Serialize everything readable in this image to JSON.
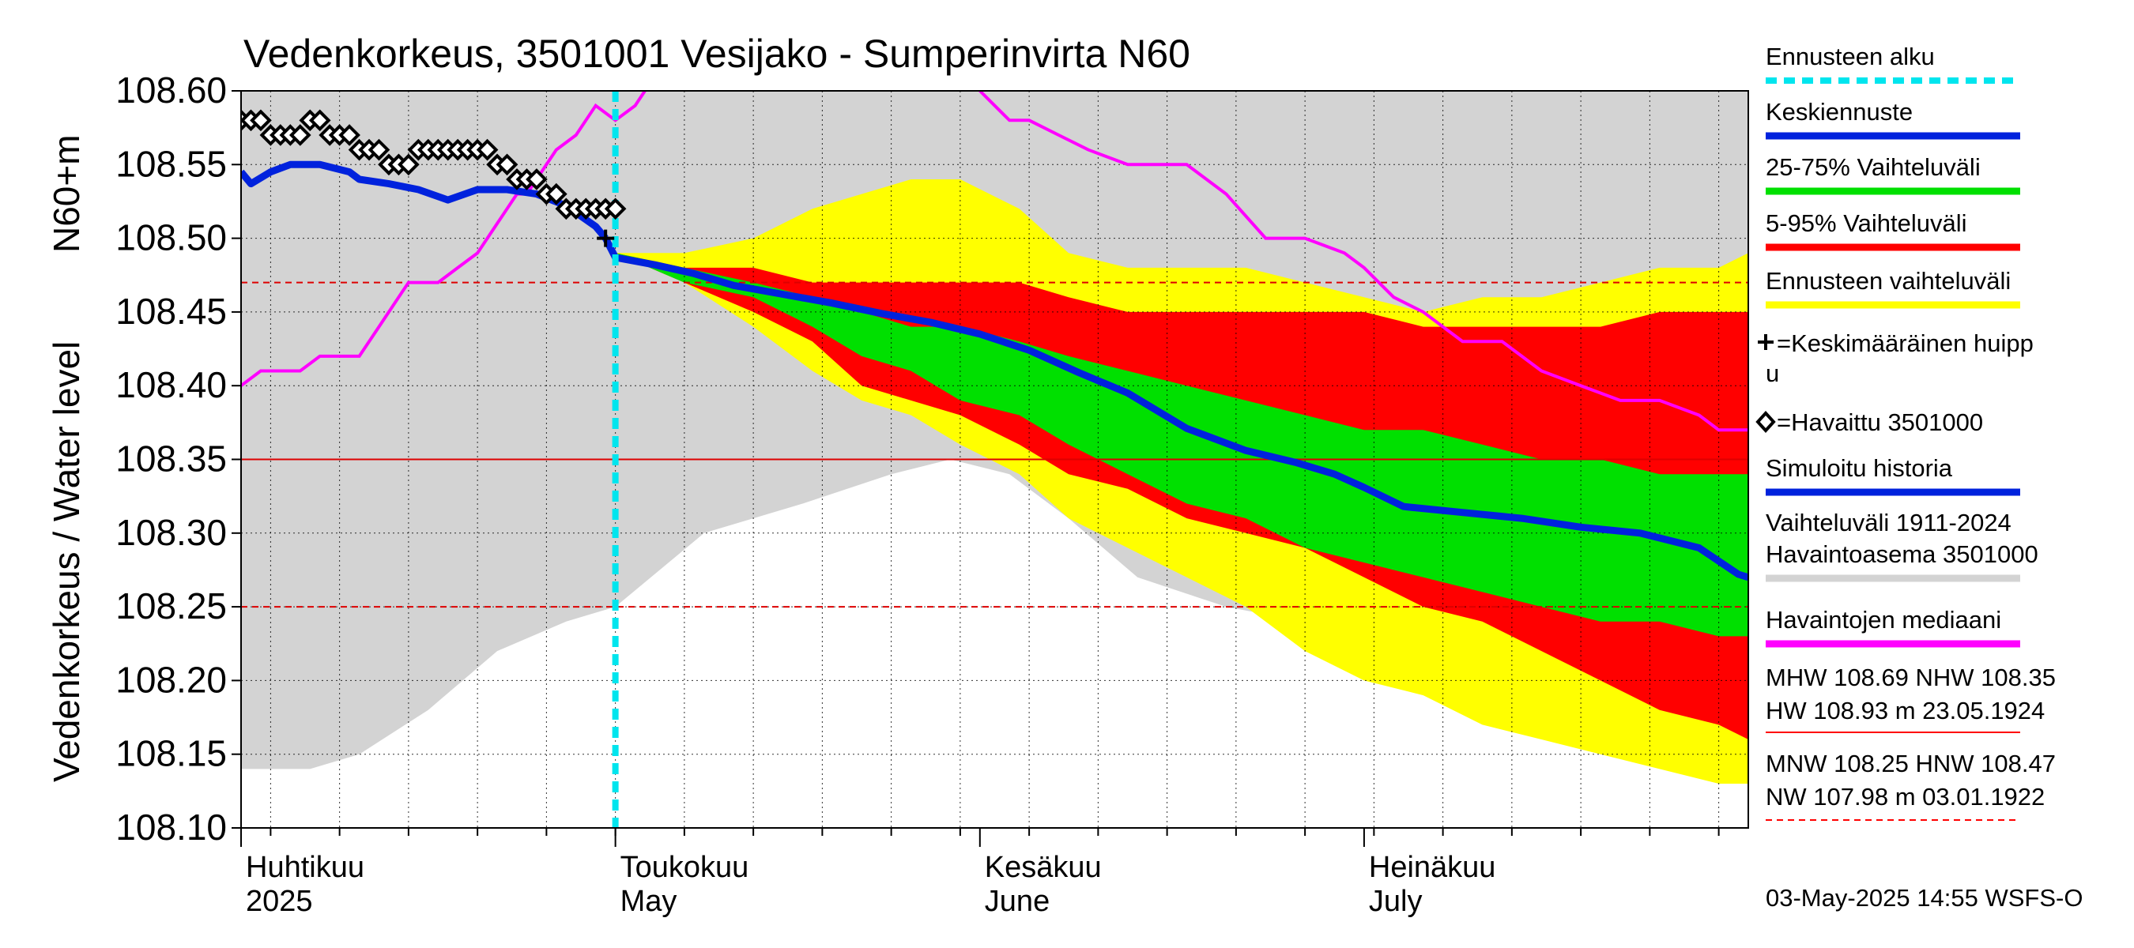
{
  "chart_data": {
    "type": "line",
    "title": "Vedenkorkeus, 3501001 Vesijako - Sumperinvirta N60",
    "ylabel_main": "Vedenkorkeus / Water level",
    "ylabel_unit": "N60+m",
    "ylim": [
      108.1,
      108.6
    ],
    "yticks": [
      "108.60",
      "108.55",
      "108.50",
      "108.45",
      "108.40",
      "108.35",
      "108.30",
      "108.25",
      "108.20",
      "108.15",
      "108.10"
    ],
    "xlim_days": [
      0,
      153
    ],
    "x_months": [
      {
        "label_fi": "Huhtikuu",
        "label_en": "2025",
        "day": 0
      },
      {
        "label_fi": "Toukokuu",
        "label_en": "May",
        "day": 38
      },
      {
        "label_fi": "Kesäkuu",
        "label_en": "June",
        "day": 75
      },
      {
        "label_fi": "Heinäkuu",
        "label_en": "July",
        "day": 114
      }
    ],
    "forecast_start_day": 38,
    "reference_lines": {
      "nhw": 108.35,
      "hnw": 108.47,
      "mnw": 108.25
    },
    "mean_peak": {
      "day": 37,
      "value": 108.5
    },
    "series": {
      "history_band": {
        "x": [
          0,
          7,
          12,
          19,
          26,
          33,
          38,
          47,
          57,
          66,
          72,
          78,
          84,
          91,
          100,
          108,
          114,
          122,
          130,
          137,
          144,
          150,
          153
        ],
        "upper": [
          108.6,
          108.6,
          108.6,
          108.6,
          108.6,
          108.6,
          108.6,
          108.6,
          108.6,
          108.6,
          108.6,
          108.6,
          108.6,
          108.6,
          108.6,
          108.6,
          108.6,
          108.6,
          108.6,
          108.6,
          108.6,
          108.6,
          108.6
        ],
        "lower": [
          108.14,
          108.14,
          108.15,
          108.18,
          108.22,
          108.24,
          108.25,
          108.3,
          108.32,
          108.34,
          108.35,
          108.34,
          108.31,
          108.27,
          108.25,
          108.24,
          108.23,
          108.22,
          108.2,
          108.19,
          108.17,
          108.15,
          108.15
        ]
      },
      "forecast_band": {
        "x": [
          38,
          45,
          52,
          58,
          63,
          68,
          73,
          79,
          84,
          90,
          96,
          102,
          108,
          114,
          120,
          126,
          132,
          138,
          144,
          150,
          153
        ],
        "upper": [
          108.49,
          108.49,
          108.5,
          108.52,
          108.53,
          108.54,
          108.54,
          108.52,
          108.49,
          108.48,
          108.48,
          108.48,
          108.47,
          108.46,
          108.45,
          108.46,
          108.46,
          108.47,
          108.48,
          108.48,
          108.49
        ],
        "lower": [
          108.49,
          108.47,
          108.44,
          108.41,
          108.39,
          108.38,
          108.36,
          108.34,
          108.31,
          108.29,
          108.27,
          108.25,
          108.22,
          108.2,
          108.19,
          108.17,
          108.16,
          108.15,
          108.14,
          108.13,
          108.13
        ]
      },
      "p5_95": {
        "x": [
          38,
          45,
          52,
          58,
          63,
          68,
          73,
          79,
          84,
          90,
          96,
          102,
          108,
          114,
          120,
          126,
          132,
          138,
          144,
          150,
          153
        ],
        "upper": [
          108.49,
          108.48,
          108.48,
          108.47,
          108.47,
          108.47,
          108.47,
          108.47,
          108.46,
          108.45,
          108.45,
          108.45,
          108.45,
          108.45,
          108.44,
          108.44,
          108.44,
          108.44,
          108.45,
          108.45,
          108.45
        ],
        "lower": [
          108.49,
          108.47,
          108.45,
          108.43,
          108.4,
          108.39,
          108.38,
          108.36,
          108.34,
          108.33,
          108.31,
          108.3,
          108.29,
          108.27,
          108.25,
          108.24,
          108.22,
          108.2,
          108.18,
          108.17,
          108.16
        ]
      },
      "p25_75": {
        "x": [
          38,
          45,
          52,
          58,
          63,
          68,
          73,
          79,
          84,
          90,
          96,
          102,
          108,
          114,
          120,
          126,
          132,
          138,
          144,
          150,
          153
        ],
        "upper": [
          108.49,
          108.48,
          108.47,
          108.46,
          108.45,
          108.44,
          108.44,
          108.43,
          108.42,
          108.41,
          108.4,
          108.39,
          108.38,
          108.37,
          108.37,
          108.36,
          108.35,
          108.35,
          108.34,
          108.34,
          108.34
        ],
        "lower": [
          108.49,
          108.47,
          108.46,
          108.44,
          108.42,
          108.41,
          108.39,
          108.38,
          108.36,
          108.34,
          108.32,
          108.31,
          108.29,
          108.28,
          108.27,
          108.26,
          108.25,
          108.24,
          108.24,
          108.23,
          108.23
        ]
      },
      "simulated": {
        "x": [
          0,
          1,
          3,
          5,
          8,
          11,
          12,
          15,
          18,
          21,
          24,
          27,
          30,
          33,
          36,
          37
        ],
        "y": [
          108.545,
          108.537,
          108.545,
          108.55,
          108.55,
          108.545,
          108.54,
          108.537,
          108.533,
          108.526,
          108.533,
          108.533,
          108.53,
          108.522,
          108.508,
          108.5
        ]
      },
      "mean_forecast": {
        "x": [
          37,
          38,
          42,
          46,
          50,
          55,
          60,
          65,
          70,
          75,
          80,
          85,
          90,
          96,
          102,
          107,
          111,
          114,
          118,
          124,
          130,
          136,
          142,
          148,
          152,
          153
        ],
        "y": [
          108.5,
          108.487,
          108.482,
          108.476,
          108.468,
          108.462,
          108.456,
          108.449,
          108.443,
          108.435,
          108.424,
          108.409,
          108.395,
          108.371,
          108.356,
          108.348,
          108.34,
          108.331,
          108.318,
          108.314,
          108.31,
          108.304,
          108.3,
          108.29,
          108.272,
          108.27
        ]
      },
      "median": {
        "x": [
          0,
          2,
          4,
          6,
          8,
          10,
          12,
          14,
          16,
          17,
          20,
          22,
          24,
          26,
          28,
          29,
          30,
          32,
          34,
          36,
          38,
          40,
          41
        ],
        "y": [
          108.4,
          108.41,
          108.41,
          108.41,
          108.42,
          108.42,
          108.42,
          108.44,
          108.46,
          108.47,
          108.47,
          108.48,
          108.49,
          108.51,
          108.53,
          108.53,
          108.54,
          108.56,
          108.57,
          108.59,
          108.58,
          108.59,
          108.6
        ],
        "x2": [
          75,
          78,
          80,
          83,
          86,
          90,
          93,
          96,
          100,
          104,
          108,
          112,
          114,
          117,
          120,
          124,
          128,
          132,
          136,
          140,
          144,
          148,
          150,
          153
        ],
        "y2": [
          108.6,
          108.58,
          108.58,
          108.57,
          108.56,
          108.55,
          108.55,
          108.55,
          108.53,
          108.5,
          108.5,
          108.49,
          108.48,
          108.46,
          108.45,
          108.43,
          108.43,
          108.41,
          108.4,
          108.39,
          108.39,
          108.38,
          108.37,
          108.37
        ]
      },
      "observed": {
        "x": [
          0,
          1,
          2,
          3,
          4,
          5,
          6,
          7,
          8,
          9,
          10,
          11,
          12,
          13,
          14,
          15,
          16,
          17,
          18,
          19,
          20,
          21,
          22,
          23,
          24,
          25,
          26,
          27,
          28,
          29,
          30,
          31,
          32,
          33,
          34,
          35,
          36,
          37,
          38
        ],
        "y": [
          108.58,
          108.58,
          108.58,
          108.57,
          108.57,
          108.57,
          108.57,
          108.58,
          108.58,
          108.57,
          108.57,
          108.57,
          108.56,
          108.56,
          108.56,
          108.55,
          108.55,
          108.55,
          108.56,
          108.56,
          108.56,
          108.56,
          108.56,
          108.56,
          108.56,
          108.56,
          108.55,
          108.55,
          108.54,
          108.54,
          108.54,
          108.53,
          108.53,
          108.52,
          108.52,
          108.52,
          108.52,
          108.52,
          108.52
        ]
      }
    },
    "legend": [
      {
        "key": "forecast_start",
        "label": "Ennusteen alku",
        "color": "#00e5ee",
        "style": "dotted"
      },
      {
        "key": "mean_forecast",
        "label": "Keskiennuste",
        "color": "#0022dd",
        "style": "line"
      },
      {
        "key": "p25_75",
        "label": "25-75% Vaihteluväli",
        "color": "#00e000",
        "style": "line"
      },
      {
        "key": "p5_95",
        "label": "5-95% Vaihteluväli",
        "color": "#ff0000",
        "style": "line"
      },
      {
        "key": "forecast_band",
        "label": "Ennusteen vaihteluväli",
        "color": "#ffff00",
        "style": "line"
      },
      {
        "key": "mean_peak",
        "label": "=Keskimääräinen huipp",
        "label2": "u",
        "color": "#000000",
        "style": "plus"
      },
      {
        "key": "observed",
        "label": "=Havaittu 3501000",
        "color": "#000000",
        "style": "diamond"
      },
      {
        "key": "simulated",
        "label": "Simuloitu historia",
        "color": "#0022dd",
        "style": "line"
      },
      {
        "key": "history_band",
        "label": "Vaihteluväli 1911-2024",
        "label2": " Havaintoasema 3501000",
        "color": "#d3d3d3",
        "style": "line"
      },
      {
        "key": "median",
        "label": "Havaintojen mediaani",
        "color": "#ff00ff",
        "style": "line"
      }
    ],
    "stats": {
      "line1": "MHW 108.69 NHW 108.35",
      "line2": "HW 108.93 m 23.05.1924",
      "line3": "MNW 108.25 HNW 108.47",
      "line4": "NW 107.98 m 03.01.1922"
    },
    "footer": "03-May-2025 14:55 WSFS-O",
    "colors": {
      "history": "#d3d3d3",
      "forecast": "#ffff00",
      "p5_95": "#ff0000",
      "p25_75": "#00e000",
      "mean": "#0022dd",
      "median": "#ff00ff",
      "forecast_start": "#00e5ee",
      "ref_line": "#dd0000"
    }
  }
}
